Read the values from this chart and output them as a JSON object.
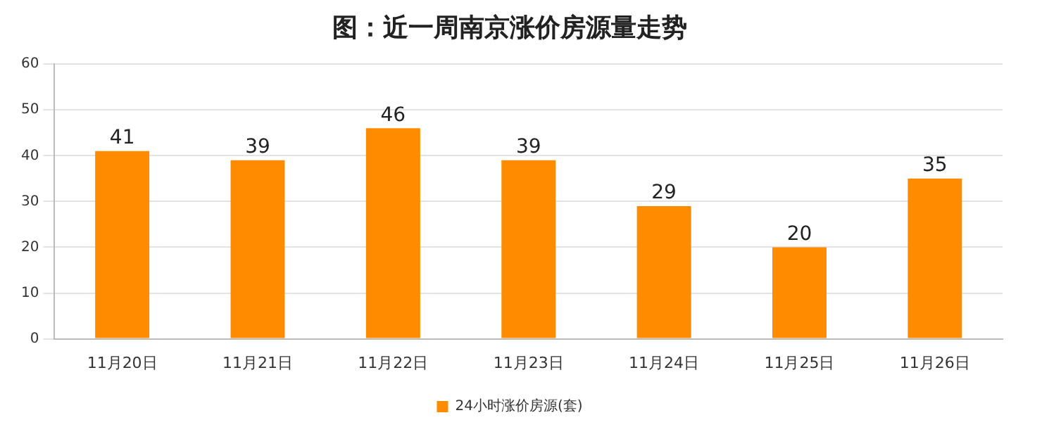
{
  "chart_data": {
    "type": "bar",
    "title": "图：近一周南京涨价房源量走势",
    "categories": [
      "11月20日",
      "11月21日",
      "11月22日",
      "11月23日",
      "11月24日",
      "11月25日",
      "11月26日"
    ],
    "series": [
      {
        "name": "24小时涨价房源(套)",
        "color": "#ff8c00",
        "values": [
          41,
          39,
          46,
          39,
          29,
          20,
          35
        ]
      }
    ],
    "ylim": [
      0,
      60
    ],
    "yticks": [
      0,
      10,
      20,
      30,
      40,
      50,
      60
    ],
    "grid": "y",
    "legend": "bottom",
    "data_labels": true
  }
}
